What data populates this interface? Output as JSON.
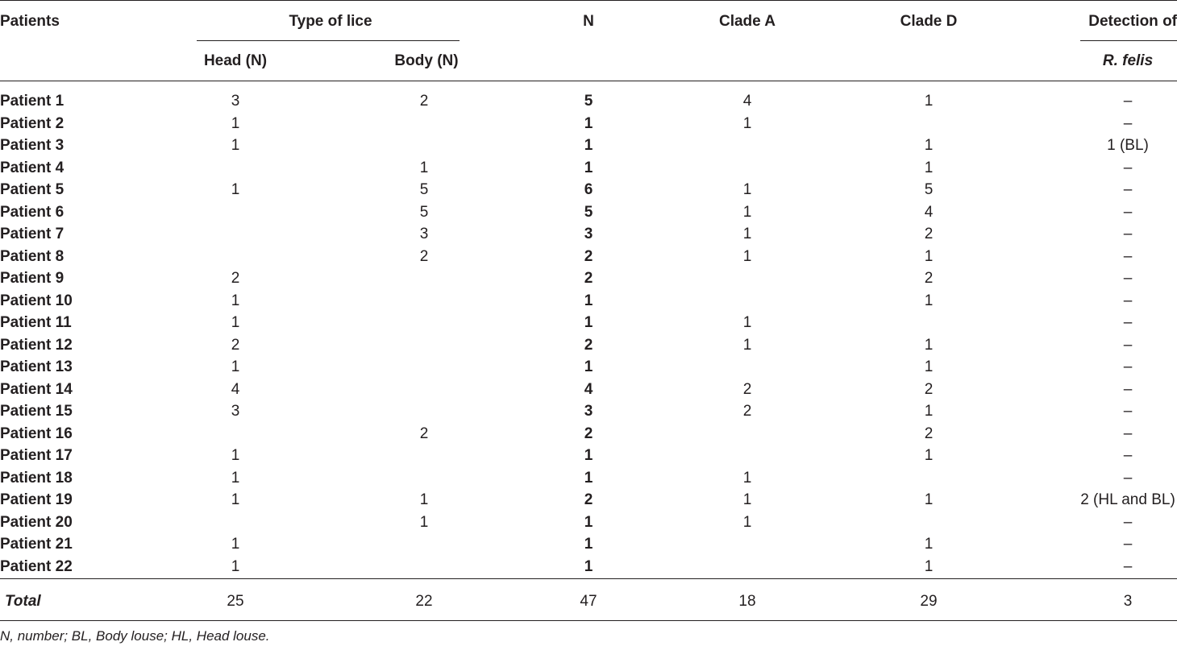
{
  "table": {
    "headers": {
      "patients": "Patients",
      "type_of_lice": "Type of lice",
      "head": "Head (N)",
      "body": "Body (N)",
      "n": "N",
      "clade_a": "Clade A",
      "clade_d": "Clade D",
      "detection_line1": "Detection of",
      "detection_line2": "R. felis"
    },
    "rows": [
      {
        "patient": "Patient 1",
        "head": "3",
        "body": "2",
        "n": "5",
        "clade_a": "4",
        "clade_d": "1",
        "detection": "–"
      },
      {
        "patient": "Patient 2",
        "head": "1",
        "body": "",
        "n": "1",
        "clade_a": "1",
        "clade_d": "",
        "detection": "–"
      },
      {
        "patient": "Patient 3",
        "head": "1",
        "body": "",
        "n": "1",
        "clade_a": "",
        "clade_d": "1",
        "detection": "1 (BL)"
      },
      {
        "patient": "Patient 4",
        "head": "",
        "body": "1",
        "n": "1",
        "clade_a": "",
        "clade_d": "1",
        "detection": "–"
      },
      {
        "patient": "Patient 5",
        "head": "1",
        "body": "5",
        "n": "6",
        "clade_a": "1",
        "clade_d": "5",
        "detection": "–"
      },
      {
        "patient": "Patient 6",
        "head": "",
        "body": "5",
        "n": "5",
        "clade_a": "1",
        "clade_d": "4",
        "detection": "–"
      },
      {
        "patient": "Patient 7",
        "head": "",
        "body": "3",
        "n": "3",
        "clade_a": "1",
        "clade_d": "2",
        "detection": "–"
      },
      {
        "patient": "Patient 8",
        "head": "",
        "body": "2",
        "n": "2",
        "clade_a": "1",
        "clade_d": "1",
        "detection": "–"
      },
      {
        "patient": "Patient 9",
        "head": "2",
        "body": "",
        "n": "2",
        "clade_a": "",
        "clade_d": "2",
        "detection": "–"
      },
      {
        "patient": "Patient 10",
        "head": "1",
        "body": "",
        "n": "1",
        "clade_a": "",
        "clade_d": "1",
        "detection": "–"
      },
      {
        "patient": "Patient 11",
        "head": "1",
        "body": "",
        "n": "1",
        "clade_a": "1",
        "clade_d": "",
        "detection": "–"
      },
      {
        "patient": "Patient 12",
        "head": "2",
        "body": "",
        "n": "2",
        "clade_a": "1",
        "clade_d": "1",
        "detection": "–"
      },
      {
        "patient": "Patient 13",
        "head": "1",
        "body": "",
        "n": "1",
        "clade_a": "",
        "clade_d": "1",
        "detection": "–"
      },
      {
        "patient": "Patient 14",
        "head": "4",
        "body": "",
        "n": "4",
        "clade_a": "2",
        "clade_d": "2",
        "detection": "–"
      },
      {
        "patient": "Patient 15",
        "head": "3",
        "body": "",
        "n": "3",
        "clade_a": "2",
        "clade_d": "1",
        "detection": "–"
      },
      {
        "patient": "Patient 16",
        "head": "",
        "body": "2",
        "n": "2",
        "clade_a": "",
        "clade_d": "2",
        "detection": "–"
      },
      {
        "patient": "Patient 17",
        "head": "1",
        "body": "",
        "n": "1",
        "clade_a": "",
        "clade_d": "1",
        "detection": "–"
      },
      {
        "patient": "Patient 18",
        "head": "1",
        "body": "",
        "n": "1",
        "clade_a": "1",
        "clade_d": "",
        "detection": "–"
      },
      {
        "patient": "Patient 19",
        "head": "1",
        "body": "1",
        "n": "2",
        "clade_a": "1",
        "clade_d": "1",
        "detection": "2 (HL and BL)"
      },
      {
        "patient": "Patient 20",
        "head": "",
        "body": "1",
        "n": "1",
        "clade_a": "1",
        "clade_d": "",
        "detection": "–"
      },
      {
        "patient": "Patient 21",
        "head": "1",
        "body": "",
        "n": "1",
        "clade_a": "",
        "clade_d": "1",
        "detection": "–"
      },
      {
        "patient": "Patient 22",
        "head": "1",
        "body": "",
        "n": "1",
        "clade_a": "",
        "clade_d": "1",
        "detection": "–"
      }
    ],
    "total": {
      "label": "Total",
      "head": "25",
      "body": "22",
      "n": "47",
      "clade_a": "18",
      "clade_d": "29",
      "detection": "3"
    }
  },
  "footnote": "N, number; BL, Body louse; HL, Head louse."
}
